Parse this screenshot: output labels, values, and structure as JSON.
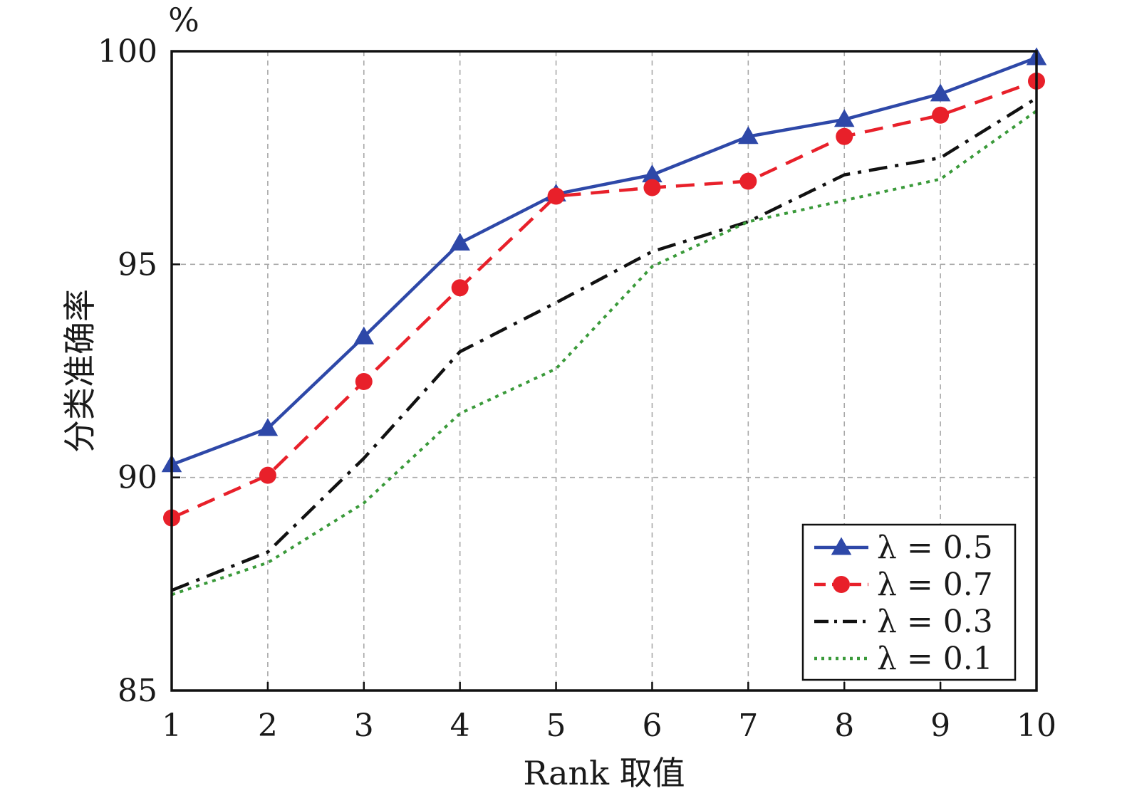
{
  "chart_data": {
    "type": "line",
    "title": "",
    "xlabel": "Rank 取值",
    "ylabel": "分类准确率",
    "yunit": "%",
    "xlim": [
      1,
      10
    ],
    "ylim": [
      85,
      100
    ],
    "x": [
      1,
      2,
      3,
      4,
      5,
      6,
      7,
      8,
      9,
      10
    ],
    "xticks": [
      "1",
      "2",
      "3",
      "4",
      "5",
      "6",
      "7",
      "8",
      "9",
      "10"
    ],
    "yticks": [
      "85",
      "90",
      "95",
      "100"
    ],
    "grid": true,
    "legend_position": "bottom-right",
    "series": [
      {
        "name": "λ = 0.5",
        "color": "#2e48a8",
        "line_style": "solid",
        "marker": "triangle",
        "values": [
          90.3,
          91.15,
          93.3,
          95.5,
          96.65,
          97.1,
          98.0,
          98.4,
          99.0,
          99.85
        ]
      },
      {
        "name": "λ = 0.7",
        "color": "#e8202a",
        "line_style": "dashed",
        "marker": "circle",
        "values": [
          89.05,
          90.05,
          92.25,
          94.45,
          96.6,
          96.8,
          96.95,
          98.0,
          98.5,
          99.3
        ]
      },
      {
        "name": "λ = 0.3",
        "color": "#111111",
        "line_style": "dashdot",
        "marker": "none",
        "values": [
          87.35,
          88.25,
          90.45,
          92.95,
          94.1,
          95.3,
          96.0,
          97.1,
          97.5,
          98.9
        ]
      },
      {
        "name": "λ = 0.1",
        "color": "#3a9a3a",
        "line_style": "dotted",
        "marker": "none",
        "values": [
          87.25,
          88.0,
          89.4,
          91.5,
          92.55,
          94.95,
          96.0,
          96.5,
          97.0,
          98.6
        ]
      }
    ]
  }
}
